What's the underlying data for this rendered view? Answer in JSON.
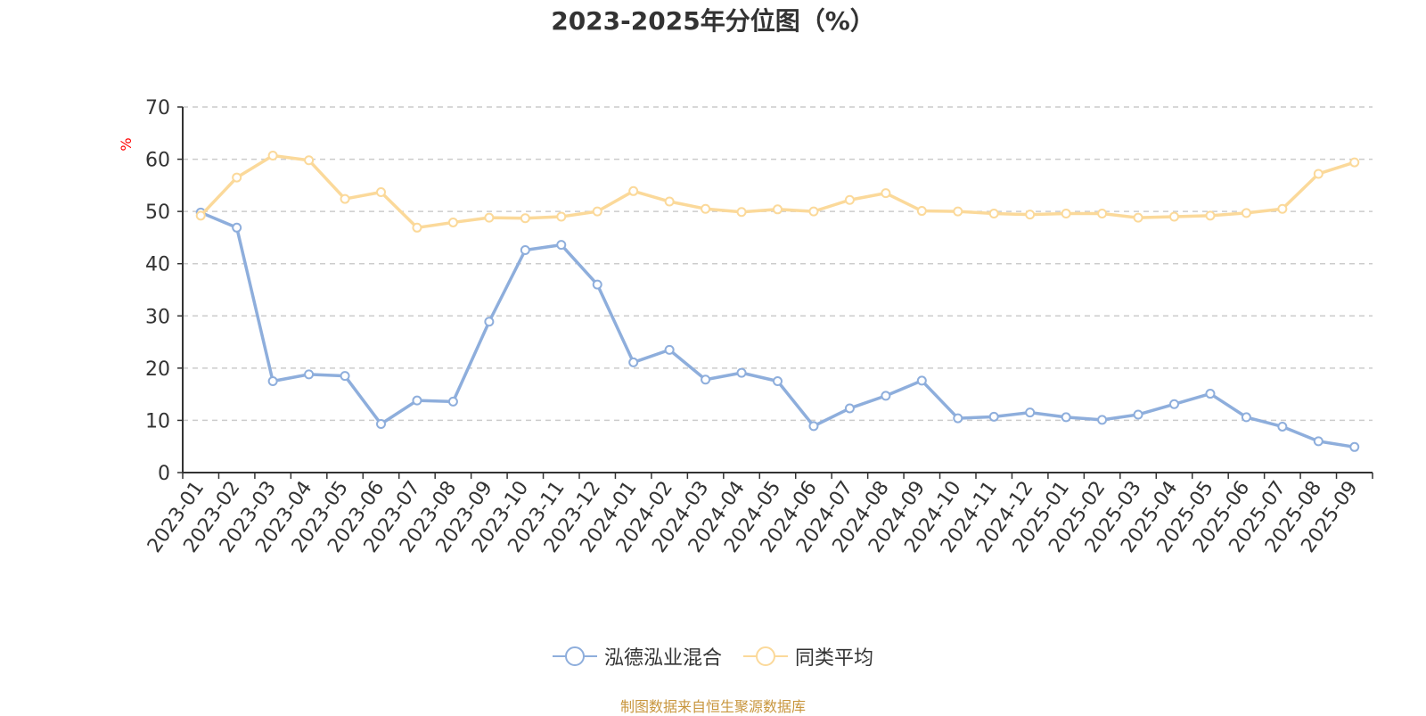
{
  "chart_data": {
    "type": "line",
    "title": "2023-2025年分位图（%）",
    "ylabel": "%",
    "ylim": [
      0,
      70
    ],
    "yticks": [
      0,
      10,
      20,
      30,
      40,
      50,
      60,
      70
    ],
    "grid": "horizontal-dashed",
    "legend_position": "bottom",
    "x": [
      "2023-01",
      "2023-02",
      "2023-03",
      "2023-04",
      "2023-05",
      "2023-06",
      "2023-07",
      "2023-08",
      "2023-09",
      "2023-10",
      "2023-11",
      "2023-12",
      "2024-01",
      "2024-02",
      "2024-03",
      "2024-04",
      "2024-05",
      "2024-06",
      "2024-07",
      "2024-08",
      "2024-09",
      "2024-10",
      "2024-11",
      "2024-12",
      "2025-01",
      "2025-02",
      "2025-03",
      "2025-04",
      "2025-05",
      "2025-06",
      "2025-07",
      "2025-08",
      "2025-09"
    ],
    "series": [
      {
        "name": "泓德泓业混合",
        "color": "#8eaedc",
        "values": [
          49.8,
          46.9,
          17.5,
          18.8,
          18.5,
          9.3,
          13.8,
          13.6,
          28.9,
          42.6,
          43.6,
          36.0,
          21.1,
          23.5,
          17.8,
          19.1,
          17.5,
          8.9,
          12.3,
          14.7,
          17.6,
          10.4,
          10.7,
          11.5,
          10.6,
          10.1,
          11.1,
          13.1,
          15.1,
          10.6,
          8.8,
          6.0,
          4.9
        ]
      },
      {
        "name": "同类平均",
        "color": "#fbd99a",
        "values": [
          49.2,
          56.5,
          60.7,
          59.8,
          52.4,
          53.7,
          46.9,
          47.9,
          48.8,
          48.7,
          49.0,
          50.0,
          53.9,
          51.9,
          50.5,
          49.9,
          50.4,
          50.0,
          52.2,
          53.5,
          50.1,
          50.0,
          49.6,
          49.4,
          49.6,
          49.6,
          48.8,
          49.0,
          49.2,
          49.7,
          50.5,
          57.2,
          59.4
        ]
      }
    ]
  },
  "source_text": "制图数据来自恒生聚源数据库"
}
